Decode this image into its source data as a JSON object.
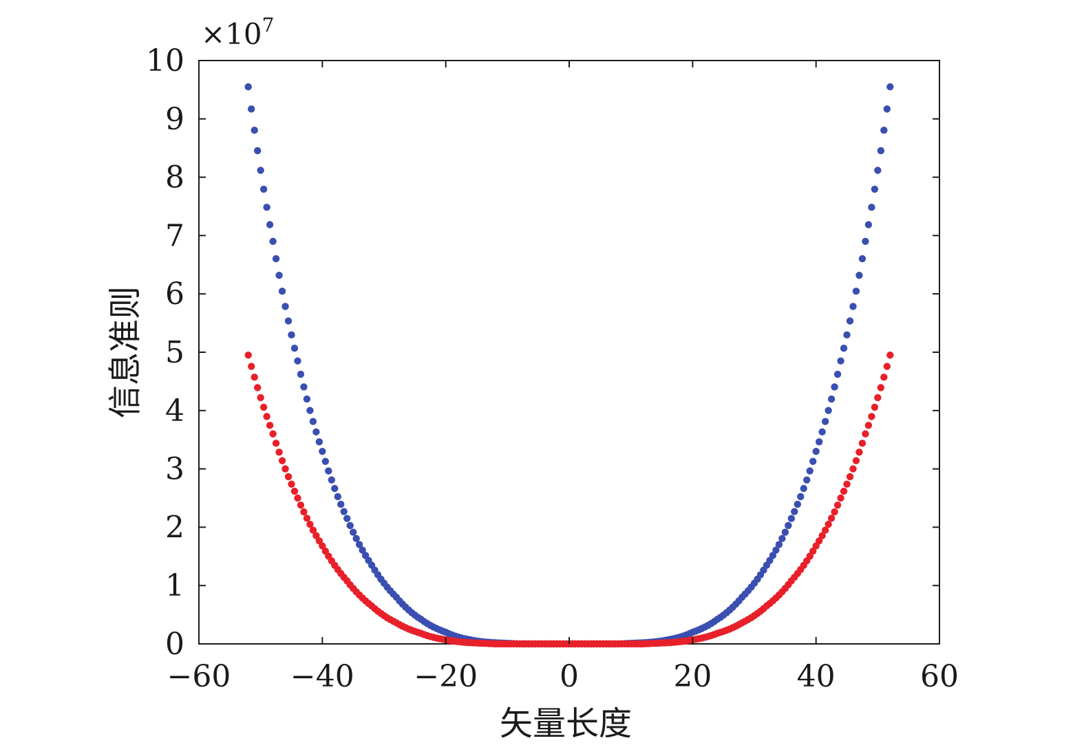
{
  "chart_data": {
    "type": "scatter",
    "title": "",
    "xlabel": "矢量长度",
    "ylabel": "信息准则",
    "y_multiplier_label": "×10",
    "y_multiplier_exponent": "7",
    "xlim": [
      -60,
      60
    ],
    "ylim": [
      0,
      10
    ],
    "x_ticks": [
      -60,
      -40,
      -20,
      0,
      20,
      40,
      60
    ],
    "x_tick_labels": [
      "−60",
      "−40",
      "−20",
      "0",
      "20",
      "40",
      "60"
    ],
    "y_ticks": [
      0,
      1,
      2,
      3,
      4,
      5,
      6,
      7,
      8,
      9,
      10
    ],
    "y_tick_labels": [
      "0",
      "1",
      "2",
      "3",
      "4",
      "5",
      "6",
      "7",
      "8",
      "9",
      "10"
    ],
    "grid": false,
    "legend": "none",
    "series": [
      {
        "color": "#3a4fb0",
        "x_range": [
          -52,
          52
        ],
        "points": 209,
        "x": [
          -52,
          -48,
          -44,
          -40,
          -36,
          -32,
          -28,
          -24,
          -20,
          -16,
          -12,
          -8,
          -4,
          0,
          4,
          8,
          12,
          16,
          20,
          24,
          28,
          32,
          36,
          40,
          44,
          48,
          52
        ],
        "y": [
          9.55,
          6.9,
          4.85,
          3.3,
          2.15,
          1.35,
          0.8,
          0.42,
          0.2,
          0.07,
          0.02,
          0.0,
          0.0,
          0.0,
          0.0,
          0.0,
          0.02,
          0.07,
          0.2,
          0.42,
          0.8,
          1.35,
          2.15,
          3.3,
          4.85,
          6.9,
          9.55
        ]
      },
      {
        "color": "#e8202a",
        "x_range": [
          -52,
          52
        ],
        "points": 209,
        "x": [
          -52,
          -48,
          -44,
          -40,
          -36,
          -32,
          -28,
          -24,
          -20,
          -16,
          -12,
          -8,
          -4,
          0,
          4,
          8,
          12,
          16,
          20,
          24,
          28,
          32,
          36,
          40,
          44,
          48,
          52
        ],
        "y": [
          4.95,
          3.6,
          2.5,
          1.68,
          1.08,
          0.65,
          0.36,
          0.18,
          0.07,
          0.02,
          0.0,
          0.0,
          0.0,
          0.0,
          0.0,
          0.0,
          0.0,
          0.02,
          0.07,
          0.18,
          0.36,
          0.65,
          1.08,
          1.68,
          2.5,
          3.6,
          4.95
        ]
      }
    ]
  }
}
